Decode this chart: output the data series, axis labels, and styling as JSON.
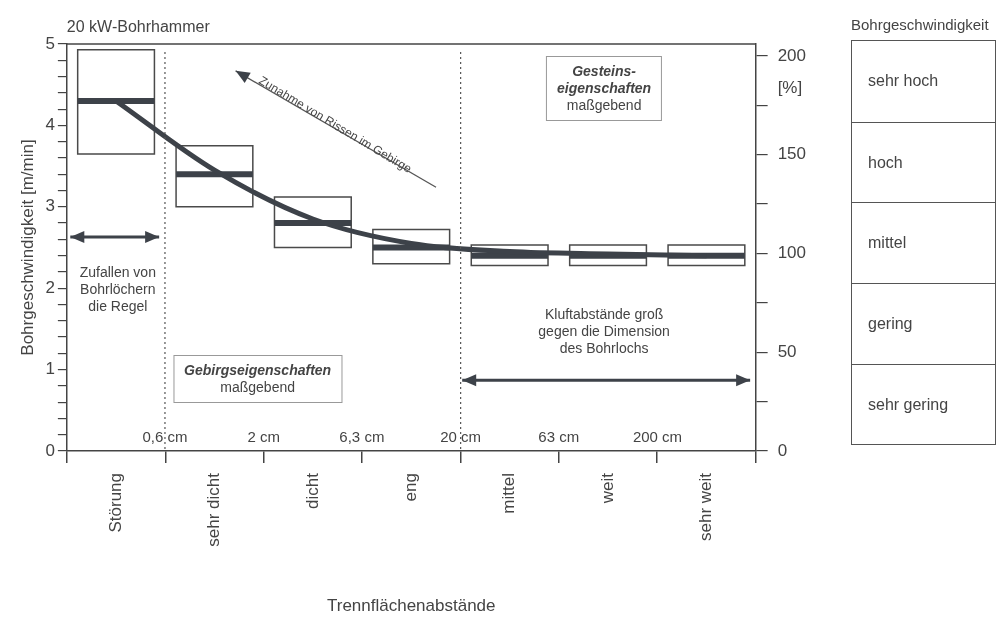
{
  "chart_data": [
    {
      "type": "box",
      "title": "20 kW-Bohrhammer",
      "xlabel": "Trennflächenabstände",
      "ylabel": "Bohrgeschwindigkeit [m/min]",
      "y2label": "[%]",
      "categories": [
        "Störung",
        "sehr dicht",
        "dicht",
        "eng",
        "mittel",
        "weit",
        "sehr weit"
      ],
      "series": [
        {
          "color": "#3d4249",
          "boxes": [
            {
              "low": 3.65,
              "q1": 3.65,
              "median": 4.3,
              "q3": 4.93,
              "high": 4.93
            },
            {
              "low": 3.0,
              "q1": 3.0,
              "median": 3.4,
              "q3": 3.75,
              "high": 3.75
            },
            {
              "low": 2.5,
              "q1": 2.5,
              "median": 2.8,
              "q3": 3.12,
              "high": 3.12
            },
            {
              "low": 2.3,
              "q1": 2.3,
              "median": 2.5,
              "q3": 2.72,
              "high": 2.72
            },
            {
              "low": 2.28,
              "q1": 2.28,
              "median": 2.4,
              "q3": 2.53,
              "high": 2.53
            },
            {
              "low": 2.28,
              "q1": 2.28,
              "median": 2.4,
              "q3": 2.53,
              "high": 2.53
            },
            {
              "low": 2.28,
              "q1": 2.28,
              "median": 2.4,
              "q3": 2.53,
              "high": 2.53
            }
          ]
        },
        {
          "type": "line",
          "color": "#3d4249",
          "marker": "none",
          "values": [
            4.3,
            3.45,
            2.85,
            2.55,
            2.45,
            2.42,
            2.4
          ]
        }
      ],
      "ylim": [
        0,
        5
      ],
      "yticks": [
        0,
        {
          "value": 0.2,
          "label": null
        },
        {
          "value": 0.4,
          "label": null
        },
        {
          "value": 0.6,
          "label": null
        },
        {
          "value": 0.8,
          "label": null
        },
        1,
        {
          "value": 1.2,
          "label": null
        },
        {
          "value": 1.4,
          "label": null
        },
        {
          "value": 1.6,
          "label": null
        },
        {
          "value": 1.8,
          "label": null
        },
        2,
        {
          "value": 2.2,
          "label": null
        },
        {
          "value": 2.4,
          "label": null
        },
        {
          "value": 2.6,
          "label": null
        },
        {
          "value": 2.8,
          "label": null
        },
        3,
        {
          "value": 3.2,
          "label": null
        },
        {
          "value": 3.4,
          "label": null
        },
        {
          "value": 3.6,
          "label": null
        },
        {
          "value": 3.8,
          "label": null
        },
        4,
        {
          "value": 4.2,
          "label": null
        },
        {
          "value": 4.4,
          "label": null
        },
        {
          "value": 4.6,
          "label": null
        },
        {
          "value": 4.8,
          "label": null
        },
        5
      ],
      "y2lim": [
        0,
        206
      ],
      "y2ticks": [
        0,
        {
          "value": 25,
          "label": null
        },
        50,
        {
          "value": 75,
          "label": null
        },
        100,
        {
          "value": 125,
          "label": null
        },
        150,
        {
          "value": 175,
          "label": null
        },
        200
      ],
      "x2lim": [
        0.2,
        630
      ],
      "x2ticks": [
        {
          "value": 0.63,
          "label": "0,6 cm"
        },
        {
          "value": 2,
          "label": "2 cm"
        },
        {
          "value": 6.3,
          "label": "6,3 cm"
        },
        {
          "value": 20,
          "label": "20 cm"
        },
        {
          "value": 63,
          "label": "63 cm"
        },
        {
          "value": 200,
          "label": "200 cm"
        }
      ],
      "log": "x2",
      "ref_lines": [
        {
          "axis": "x2",
          "value": 0.63,
          "line_style": "dotted"
        },
        {
          "axis": "x2",
          "value": 20,
          "line_style": "dotted"
        }
      ],
      "annotations": [
        "Zufallen von\nBohrlöchern\ndie Regel",
        "Gebirgseigenschaften\nmaßgebend",
        "Gesteins-\neigenschaften\nmaßgebend",
        "Zunahme von Rissen im Gebirge",
        "Kluftabstände groß\ngegen die Dimension\ndes Bohrlochs"
      ]
    },
    {
      "type": "other",
      "title": "Bohrgeschwindigkeit",
      "annotations": [
        "sehr hoch",
        "hoch",
        "mittel",
        "gering",
        "sehr gering"
      ]
    }
  ]
}
